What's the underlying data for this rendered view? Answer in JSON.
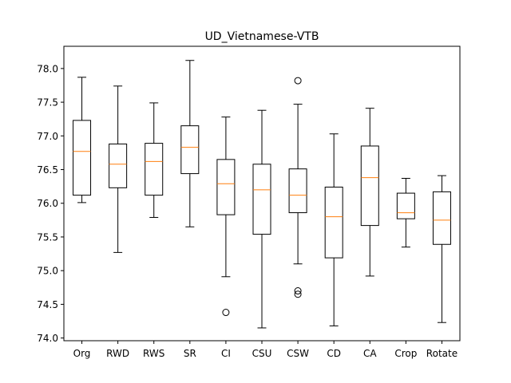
{
  "chart_data": {
    "type": "box",
    "title": "UD_Vietnamese-VTB",
    "xlabel": "",
    "ylabel": "",
    "ylim": [
      73.96,
      78.33
    ],
    "yticks": [
      74.0,
      74.5,
      75.0,
      75.5,
      76.0,
      76.5,
      77.0,
      77.5,
      78.0
    ],
    "ytick_labels": [
      "74.0",
      "74.5",
      "75.0",
      "75.5",
      "76.0",
      "76.5",
      "77.0",
      "77.5",
      "78.0"
    ],
    "categories": [
      "Org",
      "RWD",
      "RWS",
      "SR",
      "CI",
      "CSU",
      "CSW",
      "CD",
      "CA",
      "Crop",
      "Rotate"
    ],
    "boxes": [
      {
        "label": "Org",
        "whisker_low": 76.01,
        "q1": 76.12,
        "median": 76.77,
        "q3": 77.23,
        "whisker_high": 77.87,
        "outliers": []
      },
      {
        "label": "RWD",
        "whisker_low": 75.27,
        "q1": 76.23,
        "median": 76.58,
        "q3": 76.88,
        "whisker_high": 77.74,
        "outliers": []
      },
      {
        "label": "RWS",
        "whisker_low": 75.79,
        "q1": 76.12,
        "median": 76.62,
        "q3": 76.89,
        "whisker_high": 77.49,
        "outliers": []
      },
      {
        "label": "SR",
        "whisker_low": 75.65,
        "q1": 76.44,
        "median": 76.83,
        "q3": 77.15,
        "whisker_high": 78.12,
        "outliers": []
      },
      {
        "label": "CI",
        "whisker_low": 74.91,
        "q1": 75.83,
        "median": 76.29,
        "q3": 76.65,
        "whisker_high": 77.28,
        "outliers": [
          74.38
        ]
      },
      {
        "label": "CSU",
        "whisker_low": 74.15,
        "q1": 75.54,
        "median": 76.2,
        "q3": 76.58,
        "whisker_high": 77.38,
        "outliers": []
      },
      {
        "label": "CSW",
        "whisker_low": 75.1,
        "q1": 75.86,
        "median": 76.12,
        "q3": 76.51,
        "whisker_high": 77.47,
        "outliers": [
          77.82,
          74.7,
          74.65
        ]
      },
      {
        "label": "CD",
        "whisker_low": 74.18,
        "q1": 75.19,
        "median": 75.8,
        "q3": 76.24,
        "whisker_high": 77.03,
        "outliers": []
      },
      {
        "label": "CA",
        "whisker_low": 74.92,
        "q1": 75.67,
        "median": 76.38,
        "q3": 76.85,
        "whisker_high": 77.41,
        "outliers": []
      },
      {
        "label": "Crop",
        "whisker_low": 75.35,
        "q1": 75.77,
        "median": 75.86,
        "q3": 76.15,
        "whisker_high": 76.37,
        "outliers": []
      },
      {
        "label": "Rotate",
        "whisker_low": 74.23,
        "q1": 75.39,
        "median": 75.75,
        "q3": 76.17,
        "whisker_high": 76.41,
        "outliers": []
      }
    ],
    "grid": false,
    "legend": "none",
    "colors": {
      "box": "#000000",
      "median": "#ff7f0e",
      "outlier": "#000000",
      "background": "#ffffff"
    }
  }
}
